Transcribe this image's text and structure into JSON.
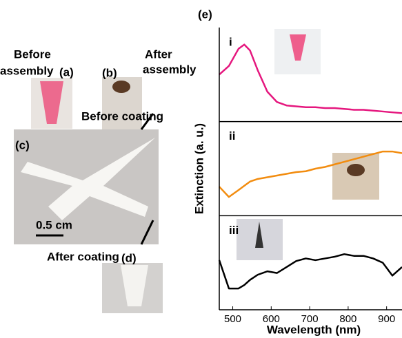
{
  "figure_labels": {
    "before_assembly_1": "Before",
    "before_assembly_2": "assembly",
    "a": "(a)",
    "b": "(b)",
    "after_assembly_1": "After",
    "after_assembly_2": "assembly",
    "before_coating": "Before coating",
    "c": "(c)",
    "scale": "0.5 cm",
    "after_coating": "After coating",
    "d": "(d)",
    "e": "(e)"
  },
  "chart_data": {
    "type": "line",
    "xlabel": "Wavelength (nm)",
    "ylabel": "Extinction (a. u.)",
    "xlim": [
      465,
      940
    ],
    "xticks": [
      500,
      600,
      700,
      800,
      900
    ],
    "ylim": [
      0,
      1
    ],
    "x": [
      465,
      490,
      515,
      530,
      545,
      565,
      590,
      615,
      640,
      665,
      690,
      715,
      740,
      765,
      790,
      815,
      840,
      865,
      890,
      915,
      940
    ],
    "series": [
      {
        "name": "i",
        "color": "#e5177e",
        "values": [
          0.5,
          0.6,
          0.8,
          0.85,
          0.78,
          0.55,
          0.3,
          0.18,
          0.14,
          0.13,
          0.12,
          0.12,
          0.11,
          0.11,
          0.1,
          0.09,
          0.09,
          0.08,
          0.07,
          0.06,
          0.05
        ]
      },
      {
        "name": "ii",
        "color": "#f28c0f",
        "values": [
          0.29,
          0.17,
          0.25,
          0.3,
          0.35,
          0.38,
          0.4,
          0.42,
          0.44,
          0.46,
          0.47,
          0.5,
          0.52,
          0.55,
          0.58,
          0.61,
          0.64,
          0.67,
          0.7,
          0.7,
          0.68
        ]
      },
      {
        "name": "iii",
        "color": "#000000",
        "values": [
          0.53,
          0.2,
          0.2,
          0.24,
          0.3,
          0.36,
          0.4,
          0.38,
          0.45,
          0.52,
          0.55,
          0.53,
          0.55,
          0.57,
          0.6,
          0.58,
          0.58,
          0.55,
          0.5,
          0.35,
          0.45
        ]
      }
    ]
  }
}
